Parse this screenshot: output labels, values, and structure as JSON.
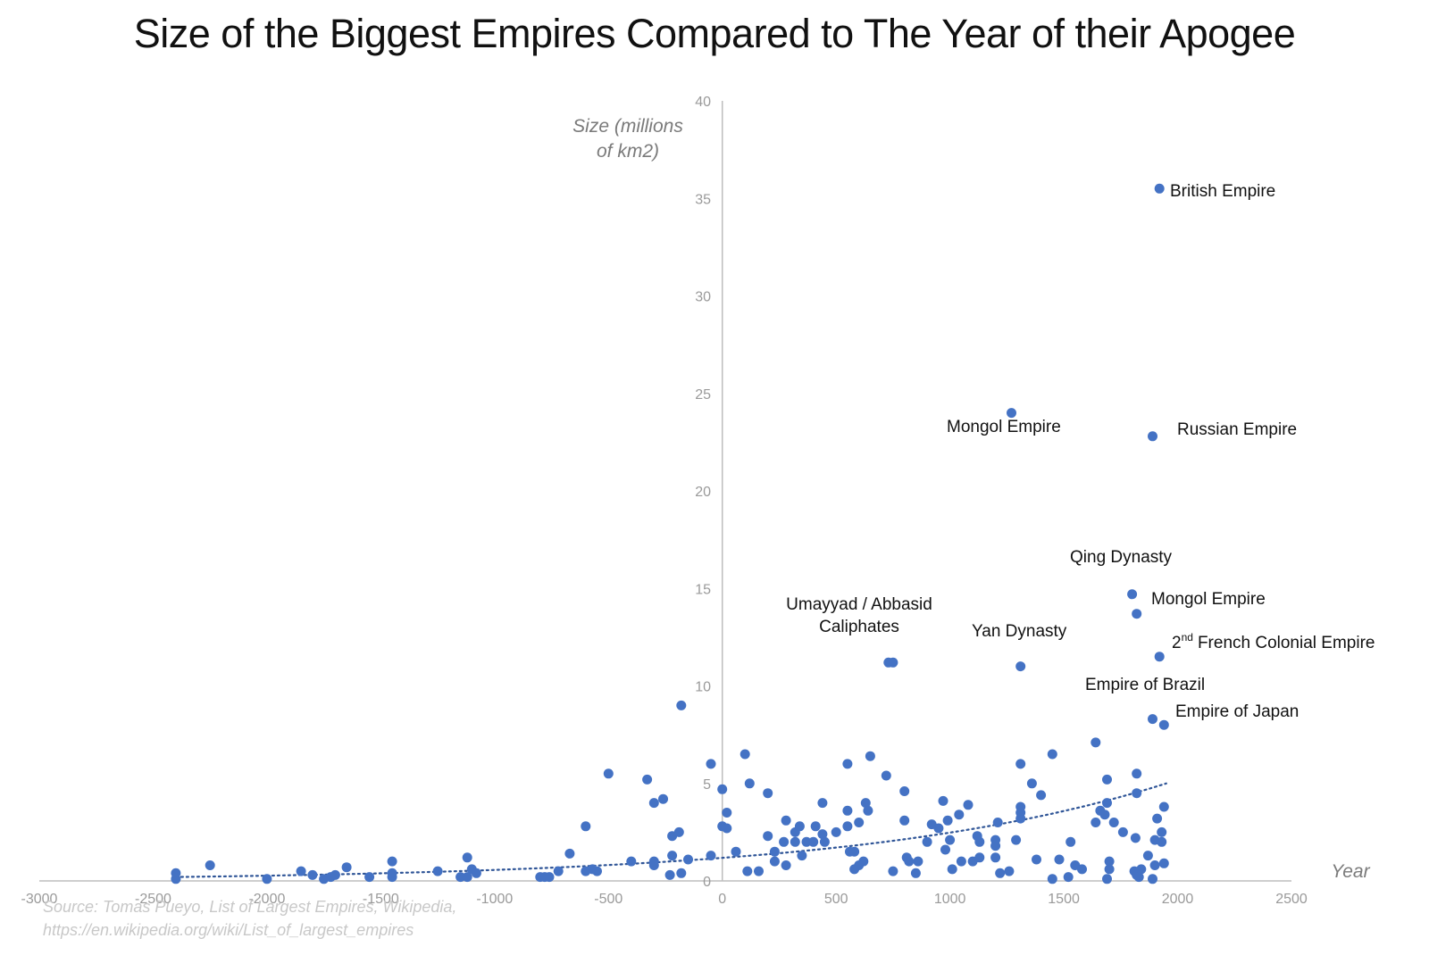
{
  "chart_data": {
    "type": "scatter",
    "title": "Size of the Biggest Empires Compared to The Year of their Apogee",
    "xlabel": "Year",
    "ylabel_lines": [
      "Size (millions",
      "of km2)"
    ],
    "xlim": [
      -3000,
      2500
    ],
    "ylim": [
      0,
      40
    ],
    "x_ticks": [
      "-3000",
      "-2500",
      "-2000",
      "-1500",
      "-1000",
      "-500",
      "0",
      "500",
      "1000",
      "1500",
      "2000",
      "2500"
    ],
    "y_ticks": [
      "0",
      "5",
      "10",
      "15",
      "20",
      "25",
      "30",
      "35",
      "40"
    ],
    "point_color": "#4472C4",
    "trendline": {
      "style": "dotted",
      "color": "#2F5597",
      "x": [
        -2400,
        1950
      ],
      "y": [
        0.2,
        5.0
      ]
    },
    "points": [
      [
        -2400,
        0.1
      ],
      [
        -2400,
        0.4
      ],
      [
        -2250,
        0.8
      ],
      [
        -2000,
        0.1
      ],
      [
        -1850,
        0.5
      ],
      [
        -1800,
        0.3
      ],
      [
        -1750,
        0.1
      ],
      [
        -1720,
        0.2
      ],
      [
        -1700,
        0.3
      ],
      [
        -1650,
        0.7
      ],
      [
        -1550,
        0.2
      ],
      [
        -1450,
        1.0
      ],
      [
        -1450,
        0.4
      ],
      [
        -1450,
        0.2
      ],
      [
        -1250,
        0.5
      ],
      [
        -1150,
        0.2
      ],
      [
        -1120,
        1.2
      ],
      [
        -1120,
        0.2
      ],
      [
        -1100,
        0.6
      ],
      [
        -1080,
        0.4
      ],
      [
        -800,
        0.2
      ],
      [
        -780,
        0.2
      ],
      [
        -760,
        0.2
      ],
      [
        -720,
        0.5
      ],
      [
        -670,
        1.4
      ],
      [
        -600,
        2.8
      ],
      [
        -600,
        0.5
      ],
      [
        -570,
        0.6
      ],
      [
        -550,
        0.5
      ],
      [
        -500,
        5.5
      ],
      [
        -400,
        1.0
      ],
      [
        -330,
        5.2
      ],
      [
        -300,
        4.0
      ],
      [
        -300,
        1.0
      ],
      [
        -300,
        0.8
      ],
      [
        -260,
        4.2
      ],
      [
        -230,
        0.3
      ],
      [
        -220,
        2.3
      ],
      [
        -220,
        1.3
      ],
      [
        -190,
        2.5
      ],
      [
        -180,
        9.0
      ],
      [
        -180,
        0.4
      ],
      [
        -150,
        1.1
      ],
      [
        -50,
        6.0
      ],
      [
        -50,
        1.3
      ],
      [
        0,
        4.7
      ],
      [
        0,
        2.8
      ],
      [
        20,
        3.5
      ],
      [
        20,
        2.7
      ],
      [
        60,
        1.5
      ],
      [
        100,
        6.5
      ],
      [
        110,
        0.5
      ],
      [
        120,
        5.0
      ],
      [
        160,
        0.5
      ],
      [
        200,
        4.5
      ],
      [
        200,
        2.3
      ],
      [
        230,
        1.5
      ],
      [
        230,
        1.0
      ],
      [
        270,
        2.0
      ],
      [
        280,
        3.1
      ],
      [
        280,
        0.8
      ],
      [
        320,
        2.5
      ],
      [
        320,
        2.0
      ],
      [
        340,
        2.8
      ],
      [
        350,
        1.3
      ],
      [
        370,
        2.0
      ],
      [
        400,
        2.0
      ],
      [
        410,
        2.8
      ],
      [
        440,
        4.0
      ],
      [
        440,
        2.4
      ],
      [
        450,
        2.0
      ],
      [
        500,
        2.5
      ],
      [
        550,
        6.0
      ],
      [
        550,
        3.6
      ],
      [
        550,
        2.8
      ],
      [
        560,
        1.5
      ],
      [
        580,
        1.5
      ],
      [
        580,
        0.6
      ],
      [
        600,
        3.0
      ],
      [
        600,
        0.8
      ],
      [
        620,
        1.0
      ],
      [
        630,
        4.0
      ],
      [
        640,
        3.6
      ],
      [
        650,
        6.4
      ],
      [
        720,
        5.4
      ],
      [
        730,
        11.2
      ],
      [
        750,
        11.2
      ],
      [
        750,
        0.5
      ],
      [
        800,
        4.6
      ],
      [
        800,
        3.1
      ],
      [
        810,
        1.2
      ],
      [
        820,
        1.0
      ],
      [
        850,
        0.4
      ],
      [
        860,
        1.0
      ],
      [
        900,
        2.0
      ],
      [
        920,
        2.9
      ],
      [
        950,
        2.7
      ],
      [
        970,
        4.1
      ],
      [
        980,
        1.6
      ],
      [
        990,
        3.1
      ],
      [
        1000,
        2.1
      ],
      [
        1010,
        0.6
      ],
      [
        1040,
        3.4
      ],
      [
        1050,
        1.0
      ],
      [
        1080,
        3.9
      ],
      [
        1100,
        1.0
      ],
      [
        1120,
        2.3
      ],
      [
        1130,
        2.0
      ],
      [
        1130,
        1.2
      ],
      [
        1200,
        2.1
      ],
      [
        1200,
        1.8
      ],
      [
        1200,
        1.2
      ],
      [
        1210,
        3.0
      ],
      [
        1220,
        0.4
      ],
      [
        1260,
        0.5
      ],
      [
        1270,
        24.0
      ],
      [
        1290,
        2.1
      ],
      [
        1310,
        11.0
      ],
      [
        1310,
        6.0
      ],
      [
        1310,
        3.8
      ],
      [
        1310,
        3.5
      ],
      [
        1310,
        3.2
      ],
      [
        1360,
        5.0
      ],
      [
        1380,
        1.1
      ],
      [
        1400,
        4.4
      ],
      [
        1450,
        6.5
      ],
      [
        1450,
        0.1
      ],
      [
        1480,
        1.1
      ],
      [
        1520,
        0.2
      ],
      [
        1530,
        2.0
      ],
      [
        1550,
        0.8
      ],
      [
        1580,
        0.6
      ],
      [
        1640,
        7.1
      ],
      [
        1640,
        3.0
      ],
      [
        1660,
        3.6
      ],
      [
        1680,
        3.4
      ],
      [
        1690,
        5.2
      ],
      [
        1690,
        4.0
      ],
      [
        1690,
        0.1
      ],
      [
        1700,
        1.0
      ],
      [
        1700,
        0.6
      ],
      [
        1720,
        3.0
      ],
      [
        1760,
        2.5
      ],
      [
        1800,
        14.7
      ],
      [
        1810,
        0.5
      ],
      [
        1815,
        2.2
      ],
      [
        1820,
        13.7
      ],
      [
        1820,
        5.5
      ],
      [
        1820,
        4.5
      ],
      [
        1820,
        0.3
      ],
      [
        1830,
        0.2
      ],
      [
        1840,
        0.6
      ],
      [
        1870,
        1.3
      ],
      [
        1890,
        22.8
      ],
      [
        1890,
        8.3
      ],
      [
        1890,
        0.1
      ],
      [
        1900,
        2.1
      ],
      [
        1900,
        0.8
      ],
      [
        1910,
        3.2
      ],
      [
        1920,
        35.5
      ],
      [
        1920,
        11.5
      ],
      [
        1930,
        2.5
      ],
      [
        1930,
        2.0
      ],
      [
        1940,
        8.0
      ],
      [
        1940,
        3.8
      ],
      [
        1940,
        0.9
      ]
    ],
    "annotations": [
      {
        "text": "British Empire",
        "x": 1920,
        "y": 35.5
      },
      {
        "text": "Mongol Empire",
        "x": 1270,
        "y": 24.0
      },
      {
        "text": "Russian Empire",
        "x": 1890,
        "y": 22.8
      },
      {
        "text": "Qing Dynasty",
        "x": 1800,
        "y": 14.7
      },
      {
        "text": "Mongol Empire",
        "x": 1820,
        "y": 13.7
      },
      {
        "text": "Umayyad / Abbasid",
        "x": 740,
        "y": 11.2
      },
      {
        "text": "Caliphates",
        "x": 740,
        "y": 11.2
      },
      {
        "text": "Yan Dynasty",
        "x": 1310,
        "y": 11.0
      },
      {
        "text": "2",
        "x": 1920,
        "y": 11.5
      },
      {
        "text": "nd",
        "x": 1920,
        "y": 11.5
      },
      {
        "text": "French Colonial Empire",
        "x": 1920,
        "y": 11.5
      },
      {
        "text": "Empire of Brazil",
        "x": 1890,
        "y": 8.3
      },
      {
        "text": "Empire of Japan",
        "x": 1940,
        "y": 8.0
      }
    ],
    "source_lines": [
      "Source: Tomas Pueyo, List of Largest Empires, Wikipedia,",
      "https://en.wikipedia.org/wiki/List_of_largest_empires"
    ]
  }
}
